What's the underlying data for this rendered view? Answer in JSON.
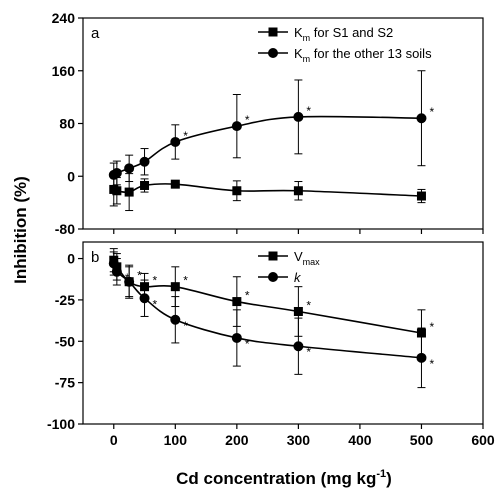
{
  "figure": {
    "y_title": "Inhibition (%)",
    "x_title_main": "Cd concentration (mg kg",
    "x_title_sup": "-1",
    "x_title_end": ")"
  },
  "chart_data": [
    {
      "type": "line",
      "panel_label": "a",
      "xlim": [
        -50,
        600
      ],
      "ylim": [
        -80,
        240
      ],
      "x_ticks": [
        0,
        100,
        200,
        300,
        400,
        500,
        600
      ],
      "y_ticks": [
        -80,
        0,
        80,
        160,
        240
      ],
      "y_tick_labels": [
        "-80",
        "0",
        "80",
        "160",
        "240"
      ],
      "legend_position": "top-right",
      "series": [
        {
          "name": "K_m for S1 and S2",
          "legend_main": "K",
          "legend_sub": "m",
          "legend_rest": " for S1 and S2",
          "marker": "square",
          "x": [
            0,
            5,
            25,
            50,
            100,
            200,
            300,
            500
          ],
          "y": [
            -20,
            -22,
            -24,
            -14,
            -12,
            -22,
            -22,
            -30
          ],
          "err": [
            25,
            20,
            28,
            10,
            3,
            15,
            14,
            10
          ],
          "stars": []
        },
        {
          "name": "K_m for the other 13 soils",
          "legend_main": "K",
          "legend_sub": "m",
          "legend_rest": " for the other 13 soils",
          "marker": "circle",
          "x": [
            0,
            5,
            25,
            50,
            100,
            200,
            300,
            500
          ],
          "y": [
            2,
            5,
            12,
            22,
            52,
            76,
            90,
            88
          ],
          "err": [
            18,
            18,
            20,
            20,
            26,
            48,
            56,
            72
          ],
          "stars": [
            100,
            200,
            300,
            500
          ]
        }
      ]
    },
    {
      "type": "line",
      "panel_label": "b",
      "xlim": [
        -50,
        600
      ],
      "ylim": [
        -100,
        10
      ],
      "x_ticks": [
        0,
        100,
        200,
        300,
        400,
        500,
        600
      ],
      "x_tick_labels": [
        "0",
        "100",
        "200",
        "300",
        "400",
        "500",
        "600"
      ],
      "y_ticks": [
        -100,
        -75,
        -50,
        -25,
        0
      ],
      "y_tick_labels": [
        "-100",
        "-75",
        "-50",
        "-25",
        "0"
      ],
      "legend_position": "top-right",
      "series": [
        {
          "name": "V_max",
          "legend_main": "V",
          "legend_sub": "max",
          "legend_rest": "",
          "marker": "square",
          "x": [
            0,
            5,
            25,
            50,
            100,
            200,
            300,
            500
          ],
          "y": [
            -1,
            -5,
            -14,
            -17,
            -17,
            -26,
            -32,
            -45
          ],
          "err": [
            7,
            8,
            9,
            8,
            12,
            15,
            15,
            14
          ],
          "stars": [
            25,
            50,
            100,
            200,
            300,
            500
          ]
        },
        {
          "name": "k",
          "legend_main": "k",
          "legend_sub": "",
          "legend_rest": "",
          "marker": "circle",
          "x": [
            0,
            5,
            25,
            50,
            100,
            200,
            300,
            500
          ],
          "y": [
            -3,
            -8,
            -14,
            -24,
            -37,
            -48,
            -53,
            -60
          ],
          "err": [
            7,
            8,
            10,
            11,
            14,
            17,
            17,
            18
          ],
          "stars": [
            5,
            50,
            100,
            200,
            300,
            500
          ]
        }
      ]
    }
  ]
}
